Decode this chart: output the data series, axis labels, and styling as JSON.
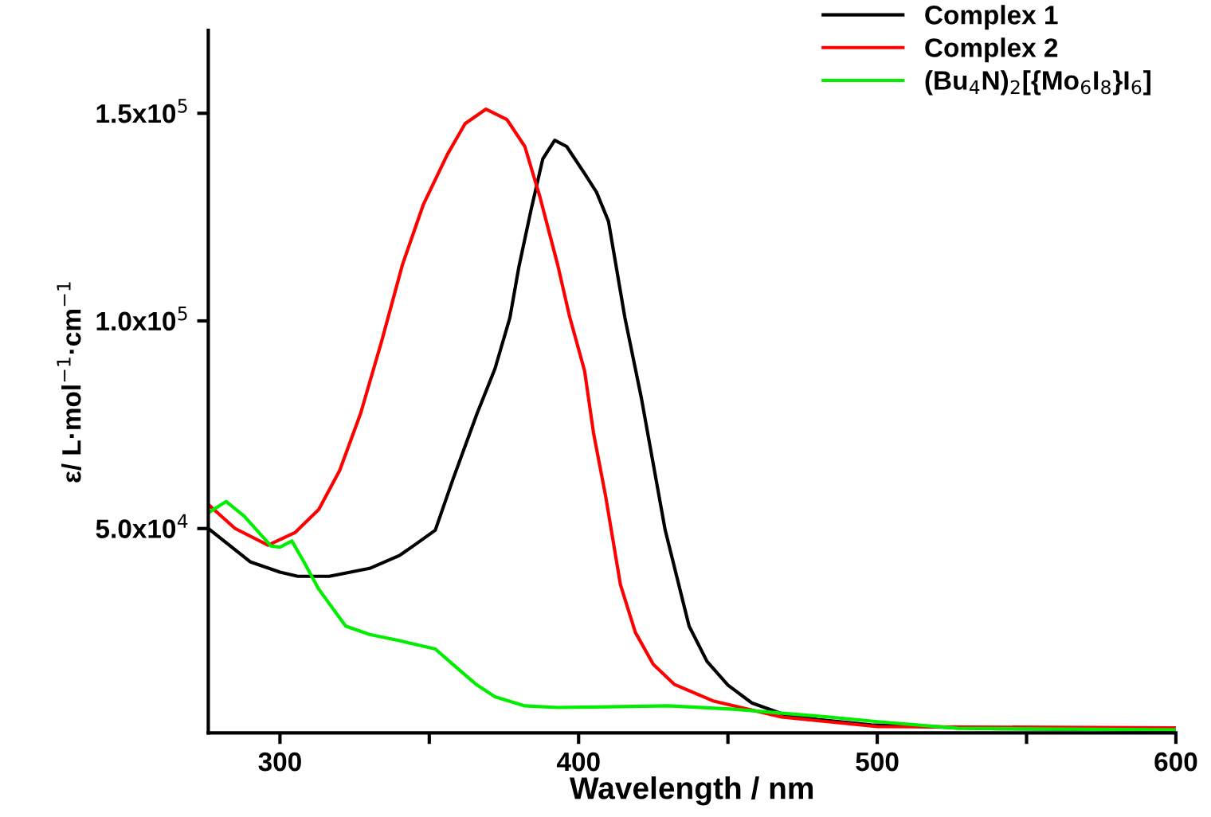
{
  "chart_data": {
    "type": "line",
    "xlabel": "Wavelength / nm",
    "ylabel": "ε/ L·mol$^{−1}$·cm$^{−1}$",
    "xlim": [
      276,
      600
    ],
    "ylim": [
      800,
      170000
    ],
    "xticks": [
      300,
      {
        "value": 350,
        "label": null
      },
      400,
      {
        "value": 450,
        "label": null
      },
      500,
      {
        "value": 550,
        "label": null
      },
      600
    ],
    "yticks": [
      {
        "value": 50000,
        "label": "5.0x10$^{4}$"
      },
      {
        "value": 100000,
        "label": "1.0x10$^{5}$"
      },
      {
        "value": 150000,
        "label": "1.5x10$^{5}$"
      }
    ],
    "grid": false,
    "legend": "top right",
    "marker": "none",
    "line_style": "solid",
    "series": [
      {
        "name": "Complex 1",
        "color": "#000000",
        "x": [
          276,
          290,
          300,
          306,
          316.5,
          330,
          340,
          345,
          352,
          358,
          366,
          372,
          377,
          380,
          384,
          388,
          392,
          396,
          402,
          406,
          410,
          415.5,
          421,
          429,
          437,
          443,
          450,
          458,
          468,
          480,
          498,
          540,
          600
        ],
        "values": [
          50000,
          42000,
          39500,
          38500,
          38500,
          40400,
          43500,
          46000,
          49600,
          62000,
          77700,
          88500,
          100800,
          113000,
          126500,
          139000,
          143500,
          142000,
          135500,
          131000,
          124000,
          100800,
          81500,
          49600,
          26500,
          18000,
          12300,
          8000,
          5400,
          4000,
          2700,
          1800,
          1500
        ]
      },
      {
        "name": "Complex 2",
        "color": "#ff0000",
        "x": [
          276,
          285,
          296,
          305,
          313,
          320,
          327,
          334,
          341,
          348,
          356,
          362,
          369,
          376,
          382,
          387,
          393,
          397,
          402,
          405,
          409,
          414,
          419,
          425,
          432,
          445,
          468,
          500,
          600
        ],
        "values": [
          55800,
          50000,
          46000,
          49000,
          54600,
          64000,
          77700,
          95000,
          113500,
          128000,
          140000,
          147500,
          151000,
          148500,
          142000,
          130000,
          113500,
          101000,
          88000,
          73000,
          58000,
          36500,
          25000,
          17300,
          12500,
          8500,
          4600,
          2300,
          2000
        ]
      },
      {
        "name": "(Bu$_{4}$N)$_{2}$[{Mo$_{6}$I$_{8}$}I$_{6}$]",
        "color": "#00ee00",
        "x": [
          276,
          282,
          288,
          297,
          300,
          304,
          308,
          313,
          322,
          330,
          340,
          352,
          360,
          366,
          372,
          382,
          393,
          430,
          452,
          484,
          500,
          527,
          600
        ],
        "values": [
          53800,
          56500,
          53000,
          45800,
          45500,
          47000,
          42000,
          35400,
          26500,
          24500,
          23000,
          21000,
          16000,
          12300,
          9500,
          7300,
          6900,
          7300,
          6500,
          4600,
          3500,
          1900,
          1500
        ]
      }
    ]
  }
}
